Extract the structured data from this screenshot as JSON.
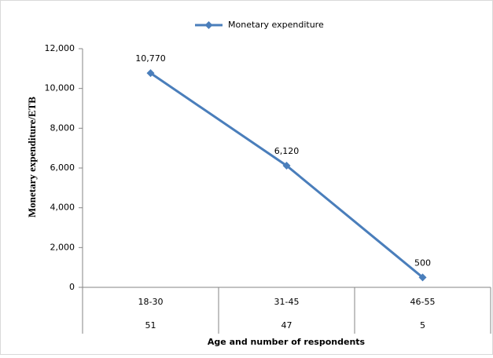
{
  "chart_data": {
    "type": "line",
    "x_label": "Age and number of respondents",
    "y_label": "Monetary expenditure/ETB",
    "categories": [
      "18-30",
      "31-45",
      "46-55"
    ],
    "category_counts": [
      51,
      47,
      5
    ],
    "series": [
      {
        "name": "Monetary expenditure",
        "color": "#4a7ebb",
        "values": [
          10770,
          6120,
          500
        ],
        "value_labels": [
          "10,770",
          "6,120",
          "500"
        ]
      }
    ],
    "ylim": [
      0,
      12000
    ],
    "yticks": [
      0,
      {
        "value": 2000,
        "label": "2,000"
      },
      {
        "value": 4000,
        "label": "4,000"
      },
      {
        "value": 6000,
        "label": "6,000"
      },
      {
        "value": 8000,
        "label": "8,000"
      },
      {
        "value": 10000,
        "label": "10,000"
      },
      {
        "value": 12000,
        "label": "12,000"
      }
    ],
    "legend": "top",
    "grid": false
  }
}
